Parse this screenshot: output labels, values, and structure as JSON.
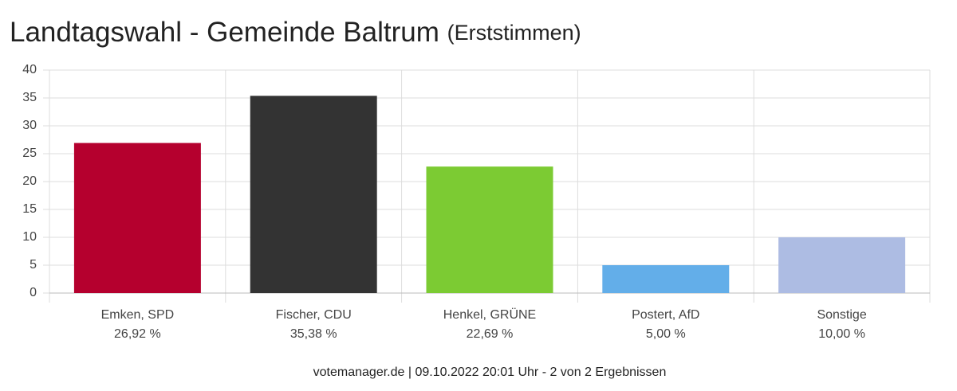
{
  "chart_data": {
    "type": "bar",
    "title": "Landtagswahl - Gemeinde Baltrum",
    "subtitle": "(Erststimmen)",
    "categories": [
      "Emken, SPD",
      "Fischer, CDU",
      "Henkel, GRÜNE",
      "Postert, AfD",
      "Sonstige"
    ],
    "values": [
      26.92,
      35.38,
      22.69,
      5.0,
      10.0
    ],
    "value_labels": [
      "26,92 %",
      "35,38 %",
      "22,69 %",
      "5,00 %",
      "10,00 %"
    ],
    "colors": [
      "#b5002e",
      "#333333",
      "#7ccb33",
      "#63aee9",
      "#adbce3"
    ],
    "ylim": [
      0,
      40
    ],
    "yticks": [
      0,
      5,
      10,
      15,
      20,
      25,
      30,
      35,
      40
    ],
    "grid": true,
    "footer": "votemanager.de | 09.10.2022 20:01 Uhr - 2 von 2 Ergebnissen"
  }
}
